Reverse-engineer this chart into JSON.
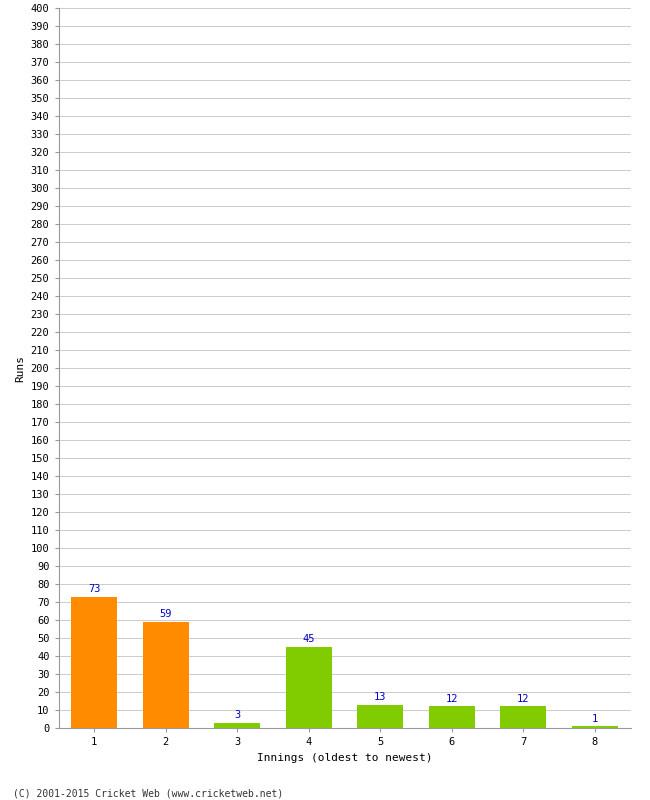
{
  "categories": [
    "1",
    "2",
    "3",
    "4",
    "5",
    "6",
    "7",
    "8"
  ],
  "values": [
    73,
    59,
    3,
    45,
    13,
    12,
    12,
    1
  ],
  "bar_colors": [
    "#ff8c00",
    "#ff8c00",
    "#80cc00",
    "#80cc00",
    "#80cc00",
    "#80cc00",
    "#80cc00",
    "#80cc00"
  ],
  "xlabel": "Innings (oldest to newest)",
  "ylabel": "Runs",
  "ylim": [
    0,
    400
  ],
  "ytick_step": 10,
  "label_color": "#0000cc",
  "background_color": "#ffffff",
  "grid_color": "#cccccc",
  "footer": "(C) 2001-2015 Cricket Web (www.cricketweb.net)",
  "tick_label_fontsize": 7.5,
  "axis_label_fontsize": 8,
  "value_label_fontsize": 7.5
}
